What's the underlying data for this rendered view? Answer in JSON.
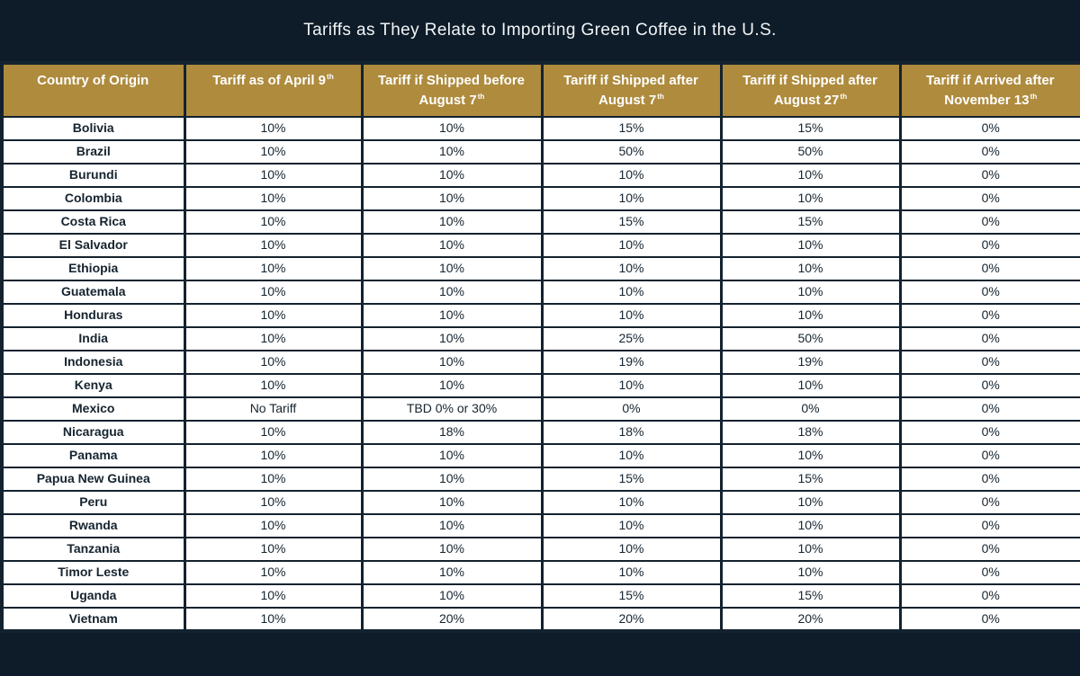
{
  "title": "Tariffs as They Relate to Importing Green Coffee in the U.S.",
  "colors": {
    "background_navy": "#0E1C2A",
    "border_navy": "#13222F",
    "header_gold": "#AE8B3D",
    "header_text": "#FFFFFF",
    "cell_background": "#FFFFFF",
    "cell_text": "#16242F",
    "title_text": "#F2F5F6"
  },
  "header": {
    "columns": [
      {
        "line1": "Country of Origin",
        "sup1": "",
        "line2": "",
        "sup2": ""
      },
      {
        "line1": "Tariff as of April 9",
        "sup1": "th",
        "line2": "",
        "sup2": ""
      },
      {
        "line1": "Tariff if Shipped before",
        "sup1": "",
        "line2": "August 7",
        "sup2": "th"
      },
      {
        "line1": "Tariff if Shipped after",
        "sup1": "",
        "line2": "August 7",
        "sup2": "th"
      },
      {
        "line1": "Tariff if Shipped after",
        "sup1": "",
        "line2": "August 27",
        "sup2": "th"
      },
      {
        "line1": "Tariff if Arrived after",
        "sup1": "",
        "line2": "November 13",
        "sup2": "th"
      }
    ]
  },
  "chart_data": {
    "type": "table",
    "title": "Tariffs as They Relate to Importing Green Coffee in the U.S.",
    "columns": [
      "Country of Origin",
      "Tariff as of April 9th",
      "Tariff if Shipped before August 7th",
      "Tariff if Shipped after August 7th",
      "Tariff if Shipped after August 27th",
      "Tariff if Arrived after November 13th"
    ],
    "rows": [
      [
        "Bolivia",
        "10%",
        "10%",
        "15%",
        "15%",
        "0%"
      ],
      [
        "Brazil",
        "10%",
        "10%",
        "50%",
        "50%",
        "0%"
      ],
      [
        "Burundi",
        "10%",
        "10%",
        "10%",
        "10%",
        "0%"
      ],
      [
        "Colombia",
        "10%",
        "10%",
        "10%",
        "10%",
        "0%"
      ],
      [
        "Costa Rica",
        "10%",
        "10%",
        "15%",
        "15%",
        "0%"
      ],
      [
        "El Salvador",
        "10%",
        "10%",
        "10%",
        "10%",
        "0%"
      ],
      [
        "Ethiopia",
        "10%",
        "10%",
        "10%",
        "10%",
        "0%"
      ],
      [
        "Guatemala",
        "10%",
        "10%",
        "10%",
        "10%",
        "0%"
      ],
      [
        "Honduras",
        "10%",
        "10%",
        "10%",
        "10%",
        "0%"
      ],
      [
        "India",
        "10%",
        "10%",
        "25%",
        "50%",
        "0%"
      ],
      [
        "Indonesia",
        "10%",
        "10%",
        "19%",
        "19%",
        "0%"
      ],
      [
        "Kenya",
        "10%",
        "10%",
        "10%",
        "10%",
        "0%"
      ],
      [
        "Mexico",
        "No Tariff",
        "TBD 0% or 30%",
        "0%",
        "0%",
        "0%"
      ],
      [
        "Nicaragua",
        "10%",
        "18%",
        "18%",
        "18%",
        "0%"
      ],
      [
        "Panama",
        "10%",
        "10%",
        "10%",
        "10%",
        "0%"
      ],
      [
        "Papua New Guinea",
        "10%",
        "10%",
        "15%",
        "15%",
        "0%"
      ],
      [
        "Peru",
        "10%",
        "10%",
        "10%",
        "10%",
        "0%"
      ],
      [
        "Rwanda",
        "10%",
        "10%",
        "10%",
        "10%",
        "0%"
      ],
      [
        "Tanzania",
        "10%",
        "10%",
        "10%",
        "10%",
        "0%"
      ],
      [
        "Timor Leste",
        "10%",
        "10%",
        "10%",
        "10%",
        "0%"
      ],
      [
        "Uganda",
        "10%",
        "10%",
        "15%",
        "15%",
        "0%"
      ],
      [
        "Vietnam",
        "10%",
        "20%",
        "20%",
        "20%",
        "0%"
      ]
    ]
  }
}
